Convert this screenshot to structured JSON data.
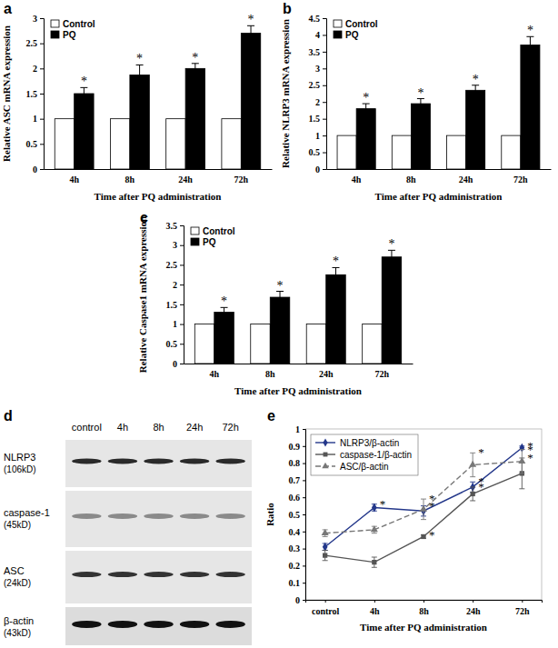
{
  "chart_data": [
    {
      "type": "bar",
      "title": "a",
      "x_label": "Time after PQ administration",
      "y_label": "Relative ASC mRNA expression",
      "categories": [
        "4h",
        "8h",
        "24h",
        "72h"
      ],
      "series": [
        {
          "name": "Control",
          "color": "#ffffff",
          "values": [
            1,
            1,
            1,
            1
          ]
        },
        {
          "name": "PQ",
          "color": "#000000",
          "values": [
            1.5,
            1.87,
            2.0,
            2.7
          ],
          "errors": [
            0.12,
            0.2,
            0.1,
            0.15
          ],
          "significance": [
            "*",
            "*",
            "*",
            "*"
          ]
        }
      ],
      "ylim": [
        0,
        3
      ],
      "yticks": [
        0,
        0.5,
        1,
        1.5,
        2,
        2.5,
        3
      ],
      "legend": "upper-left"
    },
    {
      "type": "bar",
      "title": "b",
      "x_label": "Time after PQ administration",
      "y_label": "Relative NLRP3 mRNA expression",
      "categories": [
        "4h",
        "8h",
        "24h",
        "72h"
      ],
      "series": [
        {
          "name": "Control",
          "color": "#ffffff",
          "values": [
            1,
            1,
            1,
            1
          ]
        },
        {
          "name": "PQ",
          "color": "#000000",
          "values": [
            1.8,
            1.95,
            2.35,
            3.7
          ],
          "errors": [
            0.15,
            0.15,
            0.15,
            0.25
          ],
          "significance": [
            "*",
            "*",
            "*",
            "*"
          ]
        }
      ],
      "ylim": [
        0,
        4.5
      ],
      "yticks": [
        0,
        0.5,
        1,
        1.5,
        2,
        2.5,
        3,
        3.5,
        4,
        4.5
      ],
      "legend": "upper-left"
    },
    {
      "type": "bar",
      "title": "c",
      "x_label": "Time after PQ administration",
      "y_label": "Relative Caspase1 mRNA expression",
      "categories": [
        "4h",
        "8h",
        "24h",
        "72h"
      ],
      "series": [
        {
          "name": "Control",
          "color": "#ffffff",
          "values": [
            1,
            1,
            1,
            1
          ]
        },
        {
          "name": "PQ",
          "color": "#000000",
          "values": [
            1.3,
            1.68,
            2.25,
            2.7
          ],
          "errors": [
            0.12,
            0.15,
            0.18,
            0.17
          ],
          "significance": [
            "*",
            "*",
            "*",
            "*"
          ]
        }
      ],
      "ylim": [
        0,
        3.5
      ],
      "yticks": [
        0,
        0.5,
        1,
        1.5,
        2,
        2.5,
        3,
        3.5
      ],
      "legend": "upper-left"
    },
    {
      "type": "line",
      "title": "e",
      "x_label": "Time after PQ administration",
      "y_label": "Ratio",
      "categories": [
        "control",
        "4h",
        "8h",
        "24h",
        "72h"
      ],
      "series": [
        {
          "name": "NLRP3/β-actin",
          "color": "#23378a",
          "marker": "diamond",
          "line_style": "solid",
          "values": [
            0.31,
            0.54,
            0.52,
            0.66,
            0.89
          ],
          "errors": [
            0.02,
            0.02,
            0.03,
            0.03,
            0.01
          ],
          "significance": [
            null,
            "*",
            "*",
            "*",
            "*"
          ]
        },
        {
          "name": "caspase-1/β-actin",
          "color": "#555555",
          "marker": "square",
          "line_style": "solid",
          "values": [
            0.26,
            0.22,
            0.37,
            0.62,
            0.74
          ],
          "errors": [
            0.03,
            0.03,
            0.01,
            0.04,
            0.09
          ],
          "significance": [
            null,
            null,
            "*",
            "*",
            "*"
          ]
        },
        {
          "name": "ASC/β-actin",
          "color": "#777777",
          "marker": "triangle",
          "line_style": "dashed",
          "values": [
            0.39,
            0.41,
            0.53,
            0.79,
            0.81
          ],
          "errors": [
            0.02,
            0.02,
            0.06,
            0.07,
            0.07
          ],
          "significance": [
            null,
            null,
            "*",
            "*",
            "*"
          ]
        }
      ],
      "ylim": [
        0,
        1
      ],
      "yticks": [
        0,
        0.1,
        0.2,
        0.3,
        0.4,
        0.5,
        0.6,
        0.7,
        0.8,
        0.9,
        1
      ],
      "legend": "upper-left"
    }
  ],
  "blot": {
    "title": "d",
    "lanes": [
      "control",
      "4h",
      "8h",
      "24h",
      "72h"
    ],
    "rows": [
      {
        "name": "NLRP3",
        "size": "(106kD)"
      },
      {
        "name": "caspase-1",
        "size": "(45kD)"
      },
      {
        "name": "ASC",
        "size": "(24kD)"
      },
      {
        "name": "β-actin",
        "size": "(43kD)"
      }
    ]
  }
}
